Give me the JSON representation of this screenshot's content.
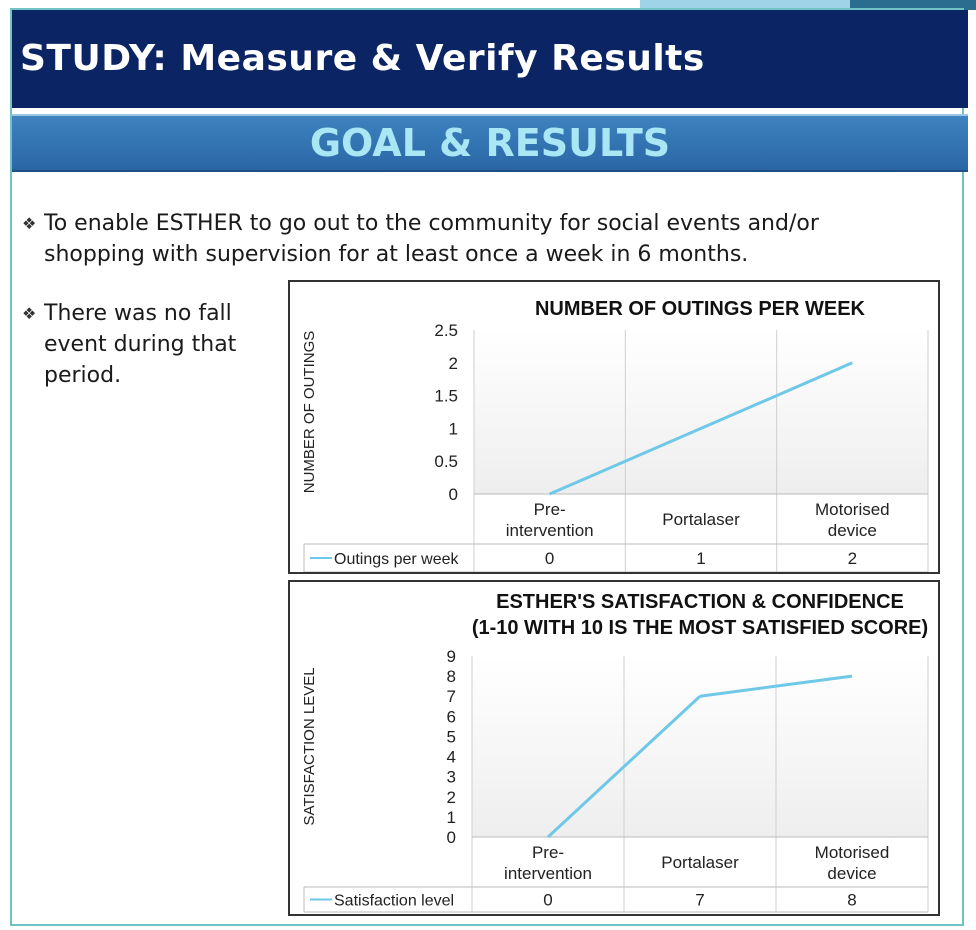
{
  "header": {
    "title": "STUDY: Measure & Verify Results",
    "subtitle": "GOAL & RESULTS"
  },
  "bullets": {
    "goal": "To enable ESTHER to go out to the community for social events and/or shopping with supervision for at least once a week in 6 months.",
    "note": "There was no fall event during that period."
  },
  "colors": {
    "header_bg": "#0b2463",
    "subtitle_bg": "#3173b2",
    "subtitle_text": "#a9e7f5",
    "series_line": "#6fc8e8"
  },
  "chart_data": [
    {
      "type": "line",
      "title": "NUMBER OF OUTINGS PER WEEK",
      "ylabel": "NUMBER OF OUTINGS",
      "xlabel": "",
      "categories": [
        "Pre-\nintervention",
        "Portalaser",
        "Motorised\ndevice"
      ],
      "series": [
        {
          "name": "Outings per week",
          "values": [
            0,
            1,
            2
          ]
        }
      ],
      "yticks": [
        "0",
        "0.5",
        "1",
        "1.5",
        "2",
        "2.5"
      ],
      "ylim": [
        0,
        2.5
      ],
      "data_table": true,
      "grid": "vertical"
    },
    {
      "type": "line",
      "title": "ESTHER'S SATISFACTION & CONFIDENCE",
      "subtitle": "(1-10 WITH 10 IS THE MOST SATISFIED SCORE)",
      "ylabel": "SATISFACTION LEVEL",
      "xlabel": "",
      "categories": [
        "Pre-\nintervention",
        "Portalaser",
        "Motorised\ndevice"
      ],
      "series": [
        {
          "name": "Satisfaction level",
          "values": [
            0,
            7,
            8
          ]
        }
      ],
      "yticks": [
        "0",
        "1",
        "2",
        "3",
        "4",
        "5",
        "6",
        "7",
        "8",
        "9"
      ],
      "ylim": [
        0,
        9
      ],
      "data_table": true,
      "grid": "vertical"
    }
  ]
}
